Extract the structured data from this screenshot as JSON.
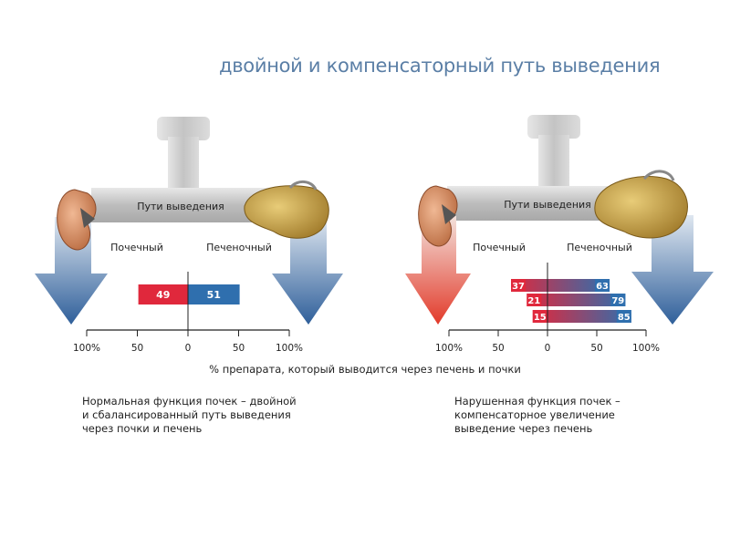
{
  "title": "двойной и компенсаторный путь выведения",
  "x_axis_label": "% препарата, который выводится через печень и почки",
  "colors": {
    "renal": "#e0283c",
    "hepatic": "#2f6fae",
    "arrow_blue": "#3d6ea6",
    "arrow_red": "#e24a3a",
    "pipe": "#c9c9c9",
    "liver": "#c8a24a",
    "kidney": "#d9956c"
  },
  "icons": [
    "kidney-icon",
    "liver-icon",
    "pipe-icon"
  ],
  "panels": [
    {
      "pipe_label": "Пути выведения",
      "renal_label": "Почечный",
      "hepatic_label": "Печеночный",
      "ticks": [
        "100%",
        "50",
        "0",
        "50",
        "100%"
      ],
      "caption": "Нормальная функция почек – двойной\nи сбалансированный путь выведения\nчерез почки и печень"
    },
    {
      "pipe_label": "Пути выведения",
      "renal_label": "Почечный",
      "hepatic_label": "Печеночный",
      "ticks": [
        "100%",
        "50",
        "0",
        "50",
        "100%"
      ],
      "caption": "Нарушенная функция почек –\nкомпенсаторное увеличение\nвыведение через печень"
    }
  ],
  "chart_data": [
    {
      "type": "bar",
      "orientation": "horizontal-diverging",
      "xlim": [
        -100,
        100
      ],
      "rows": [
        {
          "renal": 49,
          "hepatic": 51
        }
      ]
    },
    {
      "type": "bar",
      "orientation": "horizontal-diverging",
      "xlim": [
        -100,
        100
      ],
      "rows": [
        {
          "renal": 37,
          "hepatic": 63
        },
        {
          "renal": 21,
          "hepatic": 79
        },
        {
          "renal": 15,
          "hepatic": 85
        }
      ]
    }
  ]
}
